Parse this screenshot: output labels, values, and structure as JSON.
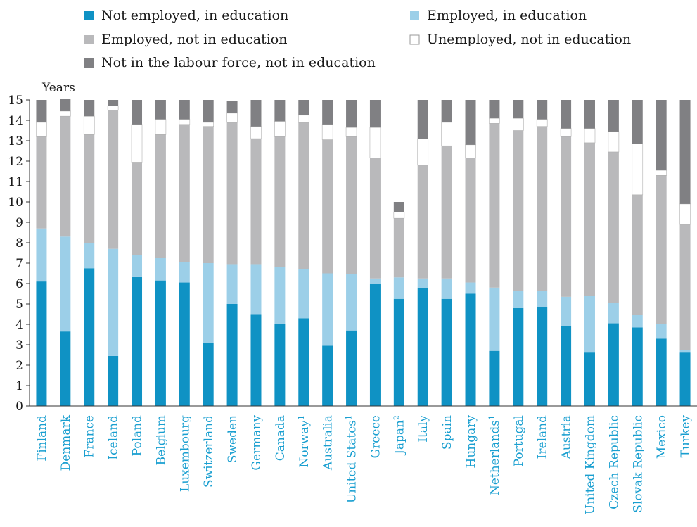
{
  "colors": {
    "not_employed_in_education": "#0f92c4",
    "employed_in_education": "#9ccfe8",
    "employed_not_in_education": "#b9b9bb",
    "unemployed_not_in_education": "#ffffff",
    "not_in_labour_force": "#808083",
    "axis": "#333333",
    "tick_label": "#1a9fd0",
    "text": "#1a1a1a"
  },
  "chart_data": {
    "type": "bar",
    "stacked": true,
    "title": "",
    "xlabel": "",
    "ylabel": "Years",
    "ylim": [
      0,
      15
    ],
    "yticks": [
      0,
      1,
      2,
      3,
      4,
      5,
      6,
      7,
      8,
      9,
      10,
      11,
      12,
      13,
      14,
      15
    ],
    "grid": false,
    "legend_position": "top",
    "legend_order": [
      "Not employed, in education",
      "Employed, in education",
      "Employed, not in education",
      "Unemployed, not in education",
      "Not in the labour force, not in education"
    ],
    "categories": [
      {
        "name": "Finland",
        "sup": ""
      },
      {
        "name": "Denmark",
        "sup": ""
      },
      {
        "name": "France",
        "sup": ""
      },
      {
        "name": "Iceland",
        "sup": ""
      },
      {
        "name": "Poland",
        "sup": ""
      },
      {
        "name": "Belgium",
        "sup": ""
      },
      {
        "name": "Luxembourg",
        "sup": ""
      },
      {
        "name": "Switzerland",
        "sup": ""
      },
      {
        "name": "Sweden",
        "sup": ""
      },
      {
        "name": "Germany",
        "sup": ""
      },
      {
        "name": "Canada",
        "sup": ""
      },
      {
        "name": "Norway",
        "sup": "1"
      },
      {
        "name": "Australia",
        "sup": ""
      },
      {
        "name": "United States",
        "sup": "1"
      },
      {
        "name": "Greece",
        "sup": ""
      },
      {
        "name": "Japan",
        "sup": "2"
      },
      {
        "name": "Italy",
        "sup": ""
      },
      {
        "name": "Spain",
        "sup": ""
      },
      {
        "name": "Hungary",
        "sup": ""
      },
      {
        "name": "Netherlands",
        "sup": "1"
      },
      {
        "name": "Portugal",
        "sup": ""
      },
      {
        "name": "Ireland",
        "sup": ""
      },
      {
        "name": "Austria",
        "sup": ""
      },
      {
        "name": "United Kingdom",
        "sup": ""
      },
      {
        "name": "Czech Republic",
        "sup": ""
      },
      {
        "name": "Slovak Republic",
        "sup": ""
      },
      {
        "name": "Mexico",
        "sup": ""
      },
      {
        "name": "Turkey",
        "sup": ""
      }
    ],
    "series": [
      {
        "name": "Not employed, in education",
        "color_key": "not_employed_in_education",
        "values": [
          6.1,
          3.65,
          6.75,
          2.45,
          6.35,
          6.15,
          6.05,
          3.1,
          5.0,
          4.5,
          4.0,
          4.3,
          2.95,
          3.7,
          6.0,
          5.25,
          5.8,
          5.25,
          5.5,
          2.7,
          4.8,
          4.85,
          3.9,
          2.65,
          4.05,
          3.85,
          3.3,
          2.65
        ]
      },
      {
        "name": "Employed, in education",
        "color_key": "employed_in_education",
        "values": [
          2.6,
          4.65,
          1.25,
          5.25,
          1.05,
          1.1,
          1.0,
          3.9,
          1.95,
          2.45,
          2.8,
          2.4,
          3.55,
          2.75,
          0.25,
          1.05,
          0.45,
          1.0,
          0.55,
          3.1,
          0.85,
          0.8,
          1.45,
          2.75,
          1.0,
          0.6,
          0.7,
          0.1
        ]
      },
      {
        "name": "Employed, not in education",
        "color_key": "employed_not_in_education",
        "values": [
          4.5,
          5.9,
          5.3,
          6.8,
          4.55,
          6.05,
          6.75,
          6.7,
          6.95,
          6.15,
          6.4,
          7.2,
          6.55,
          6.75,
          5.9,
          2.9,
          5.55,
          6.5,
          6.1,
          8.05,
          7.85,
          8.05,
          7.85,
          7.5,
          7.4,
          5.9,
          7.3,
          6.15
        ]
      },
      {
        "name": "Unemployed, not in education",
        "color_key": "unemployed_not_in_education",
        "values": [
          0.7,
          0.25,
          0.9,
          0.2,
          1.85,
          0.75,
          0.25,
          0.2,
          0.45,
          0.6,
          0.75,
          0.35,
          0.75,
          0.45,
          1.5,
          0.3,
          1.3,
          1.15,
          0.65,
          0.25,
          0.6,
          0.35,
          0.4,
          0.7,
          1.0,
          2.5,
          0.25,
          1.0
        ]
      },
      {
        "name": "Not in the labour force, not in education",
        "color_key": "not_in_labour_force",
        "values": [
          1.1,
          0.6,
          0.8,
          0.3,
          1.2,
          0.95,
          0.95,
          1.1,
          0.6,
          1.3,
          1.05,
          0.75,
          1.2,
          1.35,
          1.35,
          0.5,
          1.9,
          1.1,
          2.2,
          0.9,
          0.9,
          0.95,
          1.4,
          1.4,
          1.55,
          2.15,
          3.45,
          5.1
        ]
      }
    ]
  }
}
